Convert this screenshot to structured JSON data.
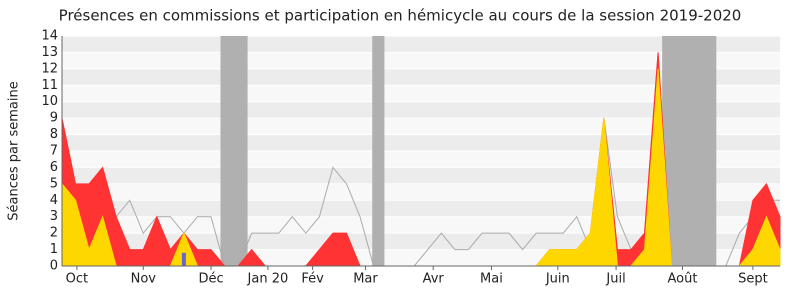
{
  "chart_data": {
    "type": "area",
    "title": "Présences en commissions et participation en hémicycle au cours de la session 2019-2020",
    "ylabel": "Séances par semaine",
    "x": [
      0,
      1,
      2,
      3,
      4,
      5,
      6,
      7,
      8,
      9,
      10,
      11,
      12,
      13,
      14,
      15,
      16,
      17,
      18,
      19,
      20,
      21,
      22,
      23,
      24,
      25,
      26,
      27,
      28,
      29,
      30,
      31,
      32,
      33,
      34,
      35,
      36,
      37,
      38,
      39,
      40,
      41,
      42,
      43,
      44,
      45,
      46,
      47,
      48,
      49,
      50,
      51,
      52,
      53
    ],
    "xlim": [
      0,
      53
    ],
    "xticks": [
      {
        "value": 1.1,
        "label": "Oct"
      },
      {
        "value": 6,
        "label": "Nov"
      },
      {
        "value": 11,
        "label": "Déc"
      },
      {
        "value": 15.2,
        "label": "Jan 20"
      },
      {
        "value": 18.5,
        "label": "Fév"
      },
      {
        "value": 22.4,
        "label": "Mar"
      },
      {
        "value": 27.4,
        "label": "Avr"
      },
      {
        "value": 31.7,
        "label": "Mai"
      },
      {
        "value": 36.6,
        "label": "Juin"
      },
      {
        "value": 40.9,
        "label": "Juil"
      },
      {
        "value": 45.8,
        "label": "Août"
      },
      {
        "value": 51,
        "label": "Sept"
      }
    ],
    "ylim": [
      0,
      14
    ],
    "yticks": [
      0,
      1,
      2,
      3,
      4,
      5,
      6,
      7,
      8,
      9,
      10,
      11,
      12,
      13,
      14
    ],
    "grid": true,
    "shaded": [
      [
        11.7,
        13.7
      ],
      [
        22.9,
        23.8
      ],
      [
        44.3,
        48.3
      ]
    ],
    "shade_color": "#b0b0b0",
    "series": [
      {
        "kind": "area",
        "color": "#ff3333",
        "values": [
          9,
          5,
          5,
          6,
          3,
          1,
          1,
          3,
          1,
          2,
          1,
          1,
          0,
          0,
          1,
          0,
          0,
          0,
          0,
          1,
          2,
          2,
          0,
          0,
          0,
          0,
          0,
          0,
          0,
          0,
          0,
          0,
          0,
          0,
          0,
          0,
          1,
          1,
          1,
          2,
          9,
          1,
          1,
          2,
          13,
          0,
          0,
          0,
          0,
          0,
          0,
          4,
          5,
          3
        ]
      },
      {
        "kind": "area",
        "color": "#ffd700",
        "values": [
          5,
          4,
          1,
          3,
          0,
          0,
          0,
          0,
          0,
          2,
          0,
          0,
          0,
          0,
          0,
          0,
          0,
          0,
          0,
          0,
          0,
          0,
          0,
          0,
          0,
          0,
          0,
          0,
          0,
          0,
          0,
          0,
          0,
          0,
          0,
          0,
          1,
          1,
          1,
          2,
          9,
          0,
          0,
          1,
          12,
          0,
          0,
          0,
          0,
          0,
          0,
          1,
          3,
          1
        ]
      },
      {
        "kind": "line",
        "color": "#aaaaaa",
        "values": [
          5,
          4,
          3,
          5,
          3,
          4,
          2,
          3,
          3,
          2,
          3,
          3,
          0,
          0,
          2,
          2,
          2,
          3,
          2,
          3,
          6,
          5,
          3,
          0,
          0,
          0,
          0,
          1,
          2,
          1,
          1,
          2,
          2,
          2,
          1,
          2,
          2,
          2,
          3,
          1,
          9,
          3,
          1,
          2,
          13,
          0,
          0,
          0,
          0,
          0,
          2,
          3,
          4,
          4
        ]
      },
      {
        "kind": "bar",
        "color": "#6666cc",
        "values": [
          0,
          0,
          0,
          0,
          0,
          0,
          0,
          0,
          0,
          0.8,
          0,
          0,
          0,
          0,
          0,
          0,
          0,
          0,
          0,
          0,
          0,
          0,
          0,
          0,
          0,
          0,
          0,
          0,
          0,
          0,
          0,
          0,
          0,
          0,
          0,
          0,
          0,
          0,
          0,
          0,
          0,
          0,
          0,
          0,
          0,
          0,
          0,
          0,
          0,
          0,
          0,
          0,
          0,
          0
        ]
      }
    ]
  }
}
